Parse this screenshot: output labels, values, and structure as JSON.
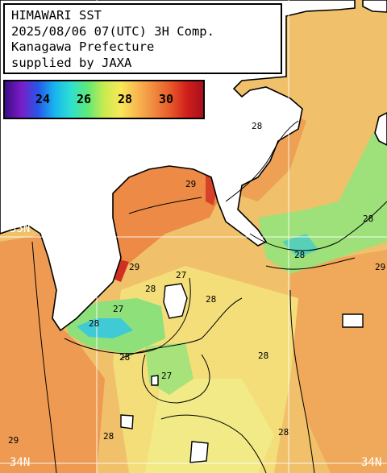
{
  "header": {
    "lines": [
      "HIMAWARI SST",
      "2025/08/06 07(UTC) 3H Comp.",
      "Kanagawa Prefecture",
      "supplied by JAXA"
    ]
  },
  "colorbar": {
    "ticks": [
      "24",
      "26",
      "28",
      "30"
    ],
    "colors": [
      "#3a0c86",
      "#7a1cc8",
      "#2656e8",
      "#18b4f0",
      "#2ee0d0",
      "#5ee878",
      "#c8ea50",
      "#f8e858",
      "#f8b850",
      "#f08a40",
      "#e85a28",
      "#d0201c",
      "#a8101c"
    ]
  },
  "axis_labels": {
    "lat_top": "35N",
    "lat_bottom": "34N",
    "lat_bottom_right": "34N"
  },
  "contour_labels": [
    "27",
    "28",
    "29"
  ],
  "colors": {
    "land": "#ffffff",
    "coastline": "#000000",
    "grid": "#ffffff",
    "sst_29": "#f2a25a",
    "sst_28": "#f7dc78",
    "sst_27": "#8ee27c",
    "sst_26": "#3cc8d8",
    "sst_30": "#e05a30"
  }
}
